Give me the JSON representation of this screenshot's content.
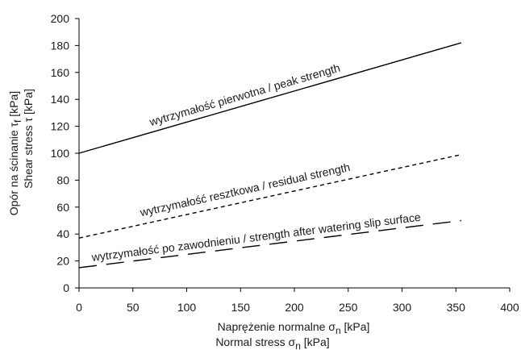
{
  "chart_data": {
    "type": "line",
    "xlim": [
      0,
      400
    ],
    "ylim": [
      0,
      200
    ],
    "x_ticks": [
      0,
      50,
      100,
      150,
      200,
      250,
      300,
      350,
      400
    ],
    "y_ticks": [
      0,
      20,
      40,
      60,
      80,
      100,
      120,
      140,
      160,
      180,
      200
    ],
    "xlabel": {
      "line1": {
        "text": "Naprężenie normalne σ",
        "sub": "n",
        "unit": " [kPa]"
      },
      "line2": {
        "text": "Normal stress σ",
        "sub": "n",
        "unit": " [kPa]"
      }
    },
    "ylabel": {
      "line1": {
        "text": "Opór na ścinanie τ",
        "sub": "f",
        "unit": " [kPa]"
      },
      "line2": {
        "text": "Shear stress τ",
        "sub": "",
        "unit": " [kPa]"
      }
    },
    "grid": false,
    "series": [
      {
        "name": "wytrzymałość pierwotna / peak strength",
        "style": "solid",
        "color": "#000000",
        "x": [
          0,
          355
        ],
        "y": [
          100,
          182
        ]
      },
      {
        "name": "wytrzymałość resztkowa / residual strength",
        "style": "short-dash",
        "color": "#000000",
        "x": [
          0,
          355
        ],
        "y": [
          37,
          99
        ]
      },
      {
        "name": "wytrzymałość po zawodnieniu /  strength after watering slip surface",
        "style": "long-dash",
        "color": "#000000",
        "x": [
          0,
          355
        ],
        "y": [
          15,
          50
        ]
      }
    ]
  }
}
